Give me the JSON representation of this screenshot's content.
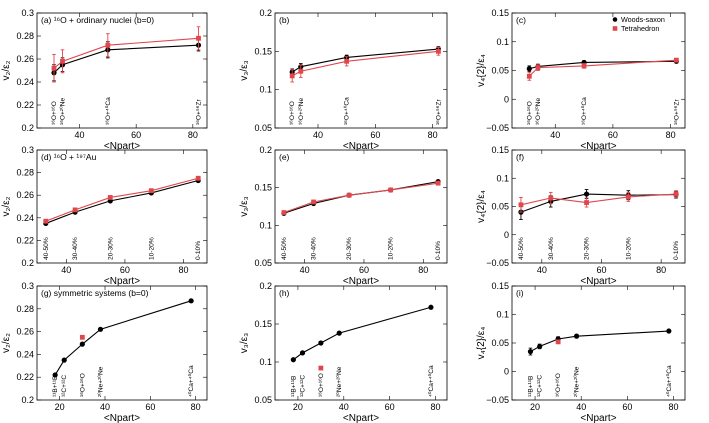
{
  "chart_data": [
    {
      "type": "line",
      "id": "a",
      "title": "(a) ¹⁶O + ordinary nuclei (b=0)",
      "xlabel": "<Npart>",
      "ylabel": "v₂/ε₂",
      "xlim": [
        25,
        85
      ],
      "ylim": [
        0.2,
        0.3
      ],
      "xticks": [
        40,
        60,
        80
      ],
      "yticks": [
        0.2,
        0.22,
        0.24,
        0.26,
        0.28,
        0.3
      ],
      "xtick_labels": [
        "40",
        "60",
        "80"
      ],
      "ytick_labels": [
        "0.2",
        "0.22",
        "0.24",
        "0.26",
        "0.28",
        "0.3"
      ],
      "series": [
        {
          "name": "Woods-saxon",
          "color": "#000000",
          "marker": "circle",
          "x": [
            31,
            34,
            50,
            82
          ],
          "y": [
            0.248,
            0.255,
            0.268,
            0.272
          ],
          "err": [
            0.007,
            0.006,
            0.007,
            0.005
          ]
        },
        {
          "name": "Tetrahedron",
          "color": "#e0474c",
          "marker": "square",
          "x": [
            31,
            34,
            50,
            82
          ],
          "y": [
            0.252,
            0.258,
            0.272,
            0.278
          ],
          "err": [
            0.012,
            0.01,
            0.01,
            0.01
          ]
        }
      ],
      "annotations": [
        {
          "text": "¹⁶O+¹⁶O",
          "x": 31
        },
        {
          "text": "¹⁶O+²⁰Ne",
          "x": 34
        },
        {
          "text": "¹⁶O+⁴⁰Ca",
          "x": 50
        },
        {
          "text": "¹⁶O+⁹⁶Zr",
          "x": 82
        }
      ]
    },
    {
      "type": "line",
      "id": "b",
      "title": "(b)",
      "xlabel": "<Npart>",
      "ylabel": "v₃/ε₃",
      "xlim": [
        25,
        85
      ],
      "ylim": [
        0.05,
        0.2
      ],
      "xticks": [
        40,
        60,
        80
      ],
      "yticks": [
        0.05,
        0.1,
        0.15,
        0.2
      ],
      "xtick_labels": [
        "40",
        "60",
        "80"
      ],
      "ytick_labels": [
        "0.05",
        "0.1",
        "0.15",
        "0.2"
      ],
      "series": [
        {
          "name": "Woods-saxon",
          "color": "#000000",
          "marker": "circle",
          "x": [
            31,
            34,
            50,
            82
          ],
          "y": [
            0.123,
            0.13,
            0.142,
            0.153
          ],
          "err": [
            0.004,
            0.004,
            0.003,
            0.003
          ]
        },
        {
          "name": "Tetrahedron",
          "color": "#e0474c",
          "marker": "square",
          "x": [
            31,
            34,
            50,
            82
          ],
          "y": [
            0.118,
            0.124,
            0.137,
            0.15
          ],
          "err": [
            0.008,
            0.008,
            0.006,
            0.005
          ]
        }
      ],
      "annotations": [
        {
          "text": "¹⁶O+¹⁶O",
          "x": 31
        },
        {
          "text": "¹⁶O+²⁰Ne",
          "x": 34
        },
        {
          "text": "¹⁶O+⁴⁰Ca",
          "x": 50
        },
        {
          "text": "¹⁶O+⁹⁶Zr",
          "x": 82
        }
      ]
    },
    {
      "type": "line",
      "id": "c",
      "title": "(c)",
      "xlabel": "<Npart>",
      "ylabel": "v₄{2}/ε₄",
      "xlim": [
        25,
        85
      ],
      "ylim": [
        -0.05,
        0.15
      ],
      "xticks": [
        40,
        60,
        80
      ],
      "yticks": [
        -0.05,
        0,
        0.05,
        0.1,
        0.15
      ],
      "xtick_labels": [
        "40",
        "60",
        "80"
      ],
      "ytick_labels": [
        "−0.05",
        "0",
        "0.05",
        "0.1",
        "0.15"
      ],
      "legend": "top-right",
      "series": [
        {
          "name": "Woods-saxon",
          "color": "#000000",
          "marker": "circle",
          "x": [
            31,
            34,
            50,
            82
          ],
          "y": [
            0.053,
            0.057,
            0.064,
            0.066
          ],
          "err": [
            0.005,
            0.004,
            0.003,
            0.003
          ]
        },
        {
          "name": "Tetrahedron",
          "color": "#e0474c",
          "marker": "square",
          "x": [
            31,
            34,
            50,
            82
          ],
          "y": [
            0.04,
            0.055,
            0.058,
            0.068
          ],
          "err": [
            0.007,
            0.005,
            0.004,
            0.003
          ]
        }
      ],
      "annotations": [
        {
          "text": "¹⁶O+¹⁶O",
          "x": 31
        },
        {
          "text": "¹⁶O+²⁰Ne",
          "x": 34
        },
        {
          "text": "¹⁶O+⁴⁰Ca",
          "x": 50
        },
        {
          "text": "¹⁶O+⁹⁶Zr",
          "x": 82
        }
      ]
    },
    {
      "type": "line",
      "id": "d",
      "title": "(d) ¹⁶O + ¹⁹⁷Au",
      "xlabel": "<Npart>",
      "ylabel": "v₂/ε₂",
      "xlim": [
        30,
        88
      ],
      "ylim": [
        0.2,
        0.3
      ],
      "xticks": [
        40,
        60,
        80
      ],
      "yticks": [
        0.2,
        0.22,
        0.24,
        0.26,
        0.28,
        0.3
      ],
      "xtick_labels": [
        "40",
        "60",
        "80"
      ],
      "ytick_labels": [
        "0.2",
        "0.22",
        "0.24",
        "0.26",
        "0.28",
        "0.3"
      ],
      "series": [
        {
          "name": "Woods-saxon",
          "color": "#000000",
          "marker": "circle",
          "x": [
            33,
            43,
            55,
            69,
            85
          ],
          "y": [
            0.235,
            0.245,
            0.255,
            0.262,
            0.273
          ],
          "err": [
            0.001,
            0.001,
            0.001,
            0.001,
            0.001
          ]
        },
        {
          "name": "Tetrahedron",
          "color": "#e0474c",
          "marker": "square",
          "x": [
            33,
            43,
            55,
            69,
            85
          ],
          "y": [
            0.237,
            0.247,
            0.258,
            0.264,
            0.275
          ],
          "err": [
            0.001,
            0.001,
            0.001,
            0.001,
            0.001
          ]
        }
      ],
      "annotations": [
        {
          "text": "40-50%",
          "x": 33
        },
        {
          "text": "30-40%",
          "x": 43
        },
        {
          "text": "20-30%",
          "x": 55
        },
        {
          "text": "10-20%",
          "x": 69
        },
        {
          "text": "0-10%",
          "x": 85
        }
      ]
    },
    {
      "type": "line",
      "id": "e",
      "title": "(e)",
      "xlabel": "<Npart>",
      "ylabel": "v₃/ε₃",
      "xlim": [
        30,
        88
      ],
      "ylim": [
        0.05,
        0.2
      ],
      "xticks": [
        40,
        60,
        80
      ],
      "yticks": [
        0.05,
        0.1,
        0.15,
        0.2
      ],
      "xtick_labels": [
        "40",
        "60",
        "80"
      ],
      "ytick_labels": [
        "0.05",
        "0.1",
        "0.15",
        "0.2"
      ],
      "series": [
        {
          "name": "Woods-saxon",
          "color": "#000000",
          "marker": "circle",
          "x": [
            33,
            43,
            55,
            69,
            85
          ],
          "y": [
            0.116,
            0.129,
            0.14,
            0.147,
            0.158
          ],
          "err": [
            0.001,
            0.001,
            0.001,
            0.001,
            0.001
          ]
        },
        {
          "name": "Tetrahedron",
          "color": "#e0474c",
          "marker": "square",
          "x": [
            33,
            43,
            55,
            69,
            85
          ],
          "y": [
            0.117,
            0.131,
            0.14,
            0.147,
            0.156
          ],
          "err": [
            0.001,
            0.001,
            0.001,
            0.001,
            0.001
          ]
        }
      ],
      "annotations": [
        {
          "text": "40-50%",
          "x": 33
        },
        {
          "text": "30-40%",
          "x": 43
        },
        {
          "text": "20-30%",
          "x": 55
        },
        {
          "text": "10-20%",
          "x": 69
        },
        {
          "text": "0-10%",
          "x": 85
        }
      ]
    },
    {
      "type": "line",
      "id": "f",
      "title": "(f)",
      "xlabel": "<Npart>",
      "ylabel": "v₄{2}/ε₄",
      "xlim": [
        30,
        88
      ],
      "ylim": [
        -0.05,
        0.15
      ],
      "xticks": [
        40,
        60,
        80
      ],
      "yticks": [
        -0.05,
        0,
        0.05,
        0.1,
        0.15
      ],
      "xtick_labels": [
        "40",
        "60",
        "80"
      ],
      "ytick_labels": [
        "−0.05",
        "0",
        "0.05",
        "0.1",
        "0.15"
      ],
      "series": [
        {
          "name": "Woods-saxon",
          "color": "#000000",
          "marker": "circle",
          "x": [
            33,
            43,
            55,
            69,
            85
          ],
          "y": [
            0.04,
            0.059,
            0.072,
            0.07,
            0.071
          ],
          "err": [
            0.013,
            0.01,
            0.008,
            0.008,
            0.006
          ]
        },
        {
          "name": "Tetrahedron",
          "color": "#e0474c",
          "marker": "square",
          "x": [
            33,
            43,
            55,
            69,
            85
          ],
          "y": [
            0.053,
            0.065,
            0.057,
            0.067,
            0.072
          ],
          "err": [
            0.013,
            0.01,
            0.008,
            0.008,
            0.006
          ]
        }
      ],
      "annotations": [
        {
          "text": "40-50%",
          "x": 33
        },
        {
          "text": "30-40%",
          "x": 43
        },
        {
          "text": "20-30%",
          "x": 55
        },
        {
          "text": "10-20%",
          "x": 69
        },
        {
          "text": "0-10%",
          "x": 85
        }
      ]
    },
    {
      "type": "line",
      "id": "g",
      "title": "(g) symmetric systems (b=0)",
      "xlabel": "<Npart>",
      "ylabel": "v₂/ε₂",
      "xlim": [
        10,
        85
      ],
      "ylim": [
        0.2,
        0.3
      ],
      "xticks": [
        20,
        40,
        60,
        80
      ],
      "yticks": [
        0.2,
        0.22,
        0.24,
        0.26,
        0.28,
        0.3
      ],
      "xtick_labels": [
        "20",
        "40",
        "60",
        "80"
      ],
      "ytick_labels": [
        "0.2",
        "0.22",
        "0.24",
        "0.26",
        "0.28",
        "0.3"
      ],
      "series": [
        {
          "name": "Woods-saxon",
          "color": "#000000",
          "marker": "circle",
          "x": [
            18,
            22,
            30,
            38,
            78
          ],
          "y": [
            0.222,
            0.235,
            0.249,
            0.262,
            0.287
          ],
          "err": [
            0,
            0,
            0,
            0,
            0
          ]
        },
        {
          "name": "Tetrahedron",
          "color": "#e0474c",
          "marker": "square",
          "x": [
            30
          ],
          "y": [
            0.255
          ],
          "err": [
            0
          ]
        }
      ],
      "annotations": [
        {
          "text": "¹¹B+¹¹B",
          "x": 18
        },
        {
          "text": "¹²C+¹²C",
          "x": 22
        },
        {
          "text": "¹⁶O+¹⁶O",
          "x": 30
        },
        {
          "text": "²⁰Ne+²⁰Ne",
          "x": 38
        },
        {
          "text": "⁴⁰Ca+⁴⁰Ca",
          "x": 78
        }
      ]
    },
    {
      "type": "line",
      "id": "h",
      "title": "(h)",
      "xlabel": "<Npart>",
      "ylabel": "v₃/ε₃",
      "xlim": [
        10,
        85
      ],
      "ylim": [
        0.05,
        0.2
      ],
      "xticks": [
        20,
        40,
        60,
        80
      ],
      "yticks": [
        0.05,
        0.1,
        0.15,
        0.2
      ],
      "xtick_labels": [
        "20",
        "40",
        "60",
        "80"
      ],
      "ytick_labels": [
        "0.05",
        "0.1",
        "0.15",
        "0.2"
      ],
      "series": [
        {
          "name": "Woods-saxon",
          "color": "#000000",
          "marker": "circle",
          "x": [
            18,
            22,
            30,
            38,
            78
          ],
          "y": [
            0.103,
            0.112,
            0.125,
            0.138,
            0.172
          ],
          "err": [
            0,
            0,
            0,
            0,
            0
          ]
        },
        {
          "name": "Tetrahedron",
          "color": "#e0474c",
          "marker": "square",
          "x": [
            30
          ],
          "y": [
            0.092
          ],
          "err": [
            0
          ]
        }
      ],
      "annotations": [
        {
          "text": "¹¹B+¹¹B",
          "x": 18
        },
        {
          "text": "¹²C+¹²C",
          "x": 22
        },
        {
          "text": "¹⁶O+¹⁶O",
          "x": 30
        },
        {
          "text": "²⁰Ne+²⁰Ne",
          "x": 38
        },
        {
          "text": "⁴⁰Ca+⁴⁰Ca",
          "x": 78
        }
      ]
    },
    {
      "type": "line",
      "id": "i",
      "title": "(i)",
      "xlabel": "<Npart>",
      "ylabel": "v₄{2}/ε₄",
      "xlim": [
        10,
        85
      ],
      "ylim": [
        -0.05,
        0.15
      ],
      "xticks": [
        20,
        40,
        60,
        80
      ],
      "yticks": [
        -0.05,
        0,
        0.05,
        0.1,
        0.15
      ],
      "xtick_labels": [
        "20",
        "40",
        "60",
        "80"
      ],
      "ytick_labels": [
        "−0.05",
        "0",
        "0.05",
        "0.1",
        "0.15"
      ],
      "series": [
        {
          "name": "Woods-saxon",
          "color": "#000000",
          "marker": "circle",
          "x": [
            18,
            22,
            30,
            38,
            78
          ],
          "y": [
            0.035,
            0.044,
            0.057,
            0.062,
            0.071
          ],
          "err": [
            0.006,
            0.004,
            0.004,
            0.003,
            0.002
          ]
        },
        {
          "name": "Tetrahedron",
          "color": "#e0474c",
          "marker": "square",
          "x": [
            30
          ],
          "y": [
            0.052
          ],
          "err": [
            0
          ]
        }
      ],
      "annotations": [
        {
          "text": "¹¹B+¹¹B",
          "x": 18
        },
        {
          "text": "¹²C+¹²C",
          "x": 22
        },
        {
          "text": "¹⁶O+¹⁶O",
          "x": 30
        },
        {
          "text": "²⁰Ne+²⁰Ne",
          "x": 38
        },
        {
          "text": "⁴⁰Ca+⁴⁰Ca",
          "x": 78
        }
      ]
    }
  ],
  "legend": {
    "entries": [
      {
        "name": "Woods-saxon",
        "color": "#000000",
        "marker": "circle"
      },
      {
        "name": "Tetrahedron",
        "color": "#e0474c",
        "marker": "square"
      }
    ]
  }
}
